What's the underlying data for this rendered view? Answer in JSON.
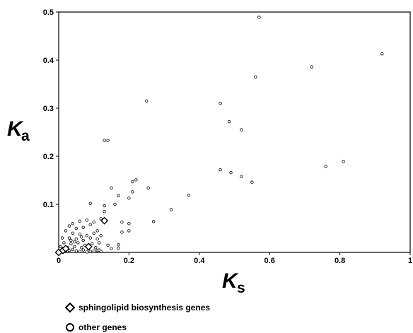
{
  "chart_data": {
    "type": "scatter",
    "xlabel": {
      "main": "K",
      "sub": "s"
    },
    "ylabel": {
      "main": "K",
      "sub": "a"
    },
    "xlim": [
      0,
      1
    ],
    "ylim": [
      0,
      0.5
    ],
    "xticks": [
      "0",
      "0.2",
      "0.4",
      "0.6",
      "0.8",
      "1"
    ],
    "yticks": [
      "0.1",
      "0.2",
      "0.3",
      "0.4",
      "0.5"
    ],
    "grid": false,
    "legend_position": "bottom-left",
    "series": [
      {
        "name": "sphingolipid biosynthesis genes",
        "marker": "diamond",
        "points": [
          [
            0.0,
            0.0
          ],
          [
            0.012,
            0.004
          ],
          [
            0.02,
            0.008
          ],
          [
            0.085,
            0.012
          ],
          [
            0.13,
            0.066
          ]
        ]
      },
      {
        "name": "other genes",
        "marker": "circle",
        "points": [
          [
            0.57,
            0.489
          ],
          [
            0.92,
            0.413
          ],
          [
            0.72,
            0.386
          ],
          [
            0.56,
            0.365
          ],
          [
            0.25,
            0.315
          ],
          [
            0.46,
            0.31
          ],
          [
            0.485,
            0.272
          ],
          [
            0.52,
            0.255
          ],
          [
            0.13,
            0.233
          ],
          [
            0.14,
            0.233
          ],
          [
            0.81,
            0.189
          ],
          [
            0.76,
            0.179
          ],
          [
            0.46,
            0.172
          ],
          [
            0.49,
            0.166
          ],
          [
            0.52,
            0.158
          ],
          [
            0.55,
            0.146
          ],
          [
            0.22,
            0.151
          ],
          [
            0.21,
            0.147
          ],
          [
            0.15,
            0.134
          ],
          [
            0.255,
            0.134
          ],
          [
            0.21,
            0.126
          ],
          [
            0.37,
            0.119
          ],
          [
            0.17,
            0.118
          ],
          [
            0.2,
            0.113
          ],
          [
            0.09,
            0.102
          ],
          [
            0.16,
            0.1
          ],
          [
            0.13,
            0.097
          ],
          [
            0.32,
            0.089
          ],
          [
            0.13,
            0.085
          ],
          [
            0.27,
            0.064
          ],
          [
            0.04,
            0.06
          ],
          [
            0.06,
            0.065
          ],
          [
            0.08,
            0.067
          ],
          [
            0.1,
            0.063
          ],
          [
            0.12,
            0.07
          ],
          [
            0.18,
            0.063
          ],
          [
            0.2,
            0.06
          ],
          [
            0.03,
            0.055
          ],
          [
            0.05,
            0.05
          ],
          [
            0.07,
            0.052
          ],
          [
            0.09,
            0.058
          ],
          [
            0.11,
            0.045
          ],
          [
            0.2,
            0.045
          ],
          [
            0.18,
            0.042
          ],
          [
            0.02,
            0.045
          ],
          [
            0.04,
            0.04
          ],
          [
            0.06,
            0.038
          ],
          [
            0.08,
            0.035
          ],
          [
            0.1,
            0.04
          ],
          [
            0.12,
            0.035
          ],
          [
            0.01,
            0.03
          ],
          [
            0.03,
            0.03
          ],
          [
            0.05,
            0.028
          ],
          [
            0.07,
            0.025
          ],
          [
            0.09,
            0.03
          ],
          [
            0.11,
            0.028
          ],
          [
            0.015,
            0.02
          ],
          [
            0.035,
            0.018
          ],
          [
            0.055,
            0.02
          ],
          [
            0.075,
            0.015
          ],
          [
            0.095,
            0.018
          ],
          [
            0.115,
            0.02
          ],
          [
            0.005,
            0.012
          ],
          [
            0.025,
            0.01
          ],
          [
            0.045,
            0.012
          ],
          [
            0.065,
            0.01
          ],
          [
            0.085,
            0.008
          ],
          [
            0.105,
            0.01
          ],
          [
            0.01,
            0.005
          ],
          [
            0.03,
            0.004
          ],
          [
            0.05,
            0.003
          ],
          [
            0.07,
            0.005
          ],
          [
            0.09,
            0.002
          ],
          [
            0.11,
            0.004
          ],
          [
            0.14,
            0.015
          ],
          [
            0.15,
            0.008
          ],
          [
            0.17,
            0.016
          ],
          [
            0.17,
            0.009
          ],
          [
            0.02,
            0.002
          ],
          [
            0.04,
            0.006
          ],
          [
            0.06,
            0.002
          ],
          [
            0.08,
            0.001
          ],
          [
            0.1,
            0.003
          ],
          [
            0.12,
            0.002
          ],
          [
            0.035,
            0.025
          ],
          [
            0.065,
            0.032
          ],
          [
            0.045,
            0.022
          ],
          [
            0.115,
            0.005
          ]
        ]
      }
    ]
  }
}
